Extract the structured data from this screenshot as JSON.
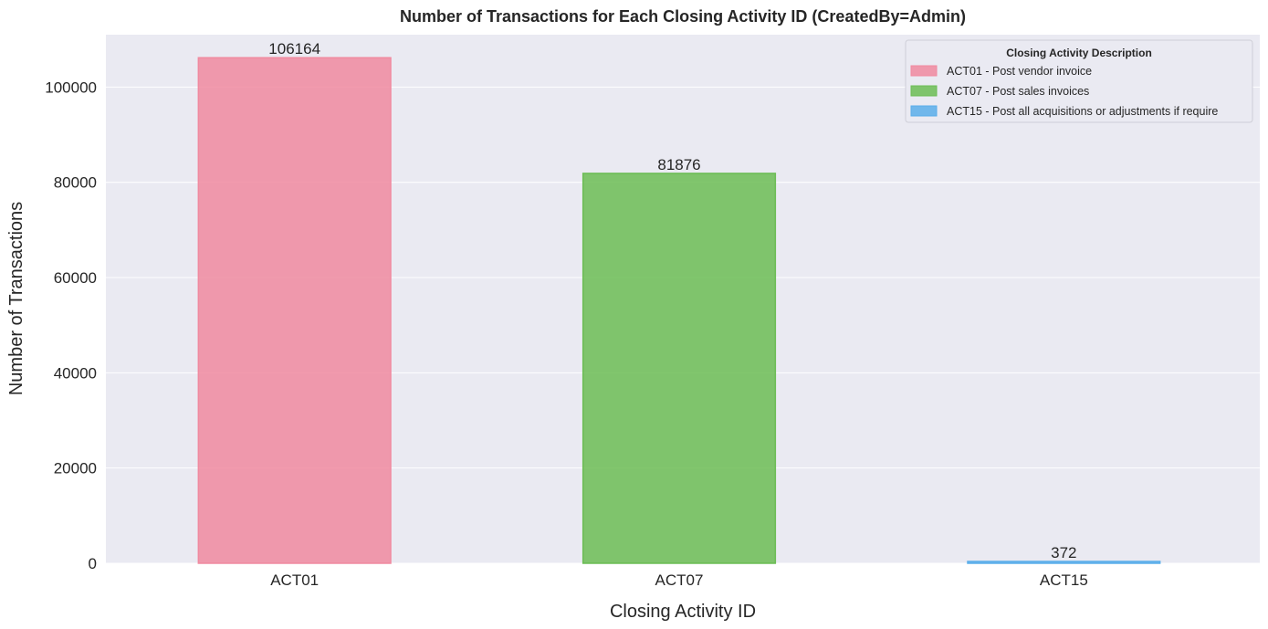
{
  "chart_data": {
    "type": "bar",
    "title": "Number of Transactions for Each Closing Activity ID (CreatedBy=Admin)",
    "xlabel": "Closing Activity ID",
    "ylabel": "Number of Transactions",
    "categories": [
      "ACT01",
      "ACT07",
      "ACT15"
    ],
    "values": [
      106164,
      81876,
      372
    ],
    "data_labels": [
      "106164",
      "81876",
      "372"
    ],
    "colors": [
      "#f08aa0",
      "#6cbd55",
      "#5aaeea"
    ],
    "ylim": [
      0,
      111000
    ],
    "yticks": [
      0,
      20000,
      40000,
      60000,
      80000,
      100000
    ],
    "ytick_labels": [
      "0",
      "20000",
      "40000",
      "60000",
      "80000",
      "100000"
    ],
    "grid": true,
    "legend": {
      "title": "Closing Activity Description",
      "placement": "top-right",
      "entries": [
        "ACT01 - Post vendor invoice",
        "ACT07 - Post sales invoices",
        "ACT15 - Post all acquisitions or adjustments if require"
      ]
    }
  }
}
